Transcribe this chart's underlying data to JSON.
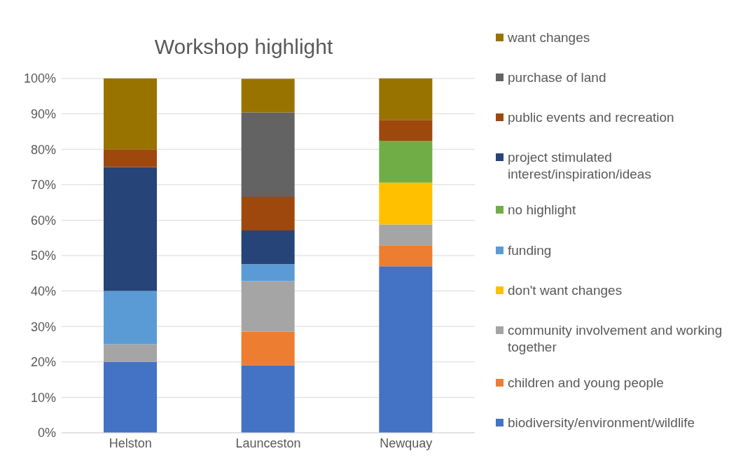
{
  "chart_data": {
    "type": "bar",
    "title": "Workshop highlight",
    "stacked": true,
    "categories": [
      "Helston",
      "Launceston",
      "Newquay"
    ],
    "series": [
      {
        "name": "biodiversity/environment/wildlife",
        "color": "#4472c4",
        "values": [
          20,
          19,
          47
        ]
      },
      {
        "name": "children and young people",
        "color": "#ed7d31",
        "values": [
          null,
          9.5,
          5.9
        ]
      },
      {
        "name": "community involvement and working together",
        "color": "#a5a5a5",
        "values": [
          5,
          14.3,
          5.9
        ]
      },
      {
        "name": "don't want changes",
        "color": "#ffc000",
        "values": [
          null,
          null,
          11.8
        ]
      },
      {
        "name": "funding",
        "color": "#5b9bd5",
        "values": [
          15,
          4.8,
          null
        ]
      },
      {
        "name": "no highlight",
        "color": "#70ad47",
        "values": [
          null,
          null,
          11.8
        ]
      },
      {
        "name": "project stimulated interest/inspiration/ideas",
        "color": "#264478",
        "values": [
          35,
          9.5,
          null
        ]
      },
      {
        "name": "public events and recreation",
        "color": "#9e480e",
        "values": [
          5,
          9.5,
          5.9
        ]
      },
      {
        "name": "purchase of land",
        "color": "#636363",
        "values": [
          null,
          23.8,
          null
        ]
      },
      {
        "name": "want changes",
        "color": "#997300",
        "values": [
          20,
          9.5,
          11.7
        ]
      }
    ],
    "ylim": [
      0,
      100
    ],
    "yticks": [
      {
        "value": 0,
        "label": "0%"
      },
      {
        "value": 10,
        "label": "10%"
      },
      {
        "value": 20,
        "label": "20%"
      },
      {
        "value": 30,
        "label": "30%"
      },
      {
        "value": 40,
        "label": "40%"
      },
      {
        "value": 50,
        "label": "50%"
      },
      {
        "value": 60,
        "label": "60%"
      },
      {
        "value": 70,
        "label": "70%"
      },
      {
        "value": 80,
        "label": "80%"
      },
      {
        "value": 90,
        "label": "90%"
      },
      {
        "value": 100,
        "label": "100%"
      }
    ],
    "grid": "y",
    "legend": "right"
  }
}
